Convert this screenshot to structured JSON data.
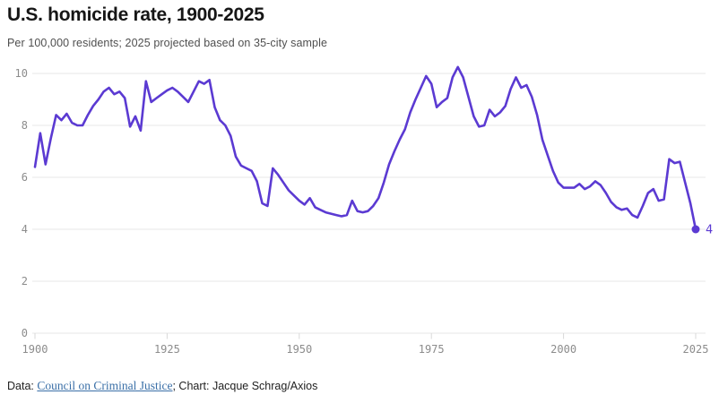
{
  "header": {
    "title": "U.S. homicide rate, 1900-2025",
    "subtitle": "Per 100,000 residents; 2025 projected based on 35-city sample"
  },
  "footer": {
    "data_prefix": "Data: ",
    "source_link": "Council on Criminal Justice",
    "credit_suffix": "; Chart: Jacque Schrag/Axios"
  },
  "colors": {
    "line": "#5B3AD2",
    "end_dot": "#5B3AD2",
    "end_label": "#5B3AD2",
    "grid": "#E7E7E7",
    "tick_mark": "#D9D9D9",
    "tick_text": "#8C8C8C",
    "link": "#3A6FA7",
    "title_text": "#161616",
    "subtitle_text": "#4F4F4F",
    "footer_text": "#212121",
    "background": "#FFFFFF"
  },
  "chart_data": {
    "type": "line",
    "title": "U.S. homicide rate, 1900-2025",
    "unit": "Per 100,000 residents",
    "note": "2025 projected based on 35-city sample",
    "series_name": "U.S. homicide rate",
    "x_start": 1900,
    "x_end": 2025,
    "x_step": 1,
    "values": [
      6.4,
      7.7,
      6.5,
      7.5,
      8.4,
      8.2,
      8.45,
      8.1,
      8.0,
      8.0,
      8.4,
      8.75,
      9.0,
      9.3,
      9.45,
      9.2,
      9.3,
      9.05,
      7.95,
      8.35,
      7.8,
      9.7,
      8.9,
      9.05,
      9.2,
      9.35,
      9.45,
      9.3,
      9.1,
      8.9,
      9.3,
      9.7,
      9.6,
      9.75,
      8.7,
      8.2,
      8.0,
      7.6,
      6.8,
      6.45,
      6.35,
      6.25,
      5.85,
      5.0,
      4.9,
      6.35,
      6.1,
      5.8,
      5.5,
      5.3,
      5.1,
      4.95,
      5.2,
      4.85,
      4.75,
      4.65,
      4.6,
      4.55,
      4.5,
      4.55,
      5.1,
      4.7,
      4.65,
      4.7,
      4.9,
      5.2,
      5.8,
      6.5,
      7.0,
      7.45,
      7.85,
      8.5,
      9.0,
      9.45,
      9.9,
      9.6,
      8.7,
      8.9,
      9.05,
      9.85,
      10.25,
      9.85,
      9.1,
      8.35,
      7.95,
      8.0,
      8.6,
      8.35,
      8.5,
      8.75,
      9.4,
      9.85,
      9.45,
      9.55,
      9.1,
      8.4,
      7.45,
      6.85,
      6.25,
      5.8,
      5.6,
      5.6,
      5.6,
      5.75,
      5.55,
      5.65,
      5.85,
      5.7,
      5.4,
      5.05,
      4.85,
      4.75,
      4.8,
      4.55,
      4.45,
      4.9,
      5.4,
      5.55,
      5.1,
      5.15,
      6.7,
      6.55,
      6.6,
      5.8,
      5.0,
      4.0
    ],
    "y_ticks": [
      0,
      2,
      4,
      6,
      8,
      10
    ],
    "x_ticks": [
      1900,
      1925,
      1950,
      1975,
      2000,
      2025
    ],
    "ylim": [
      0,
      10.6
    ],
    "xlim": [
      1900,
      2025
    ],
    "grid": "horizontal",
    "legend": "none",
    "end_point": {
      "year": 2025,
      "value": 4,
      "label": "4"
    }
  }
}
